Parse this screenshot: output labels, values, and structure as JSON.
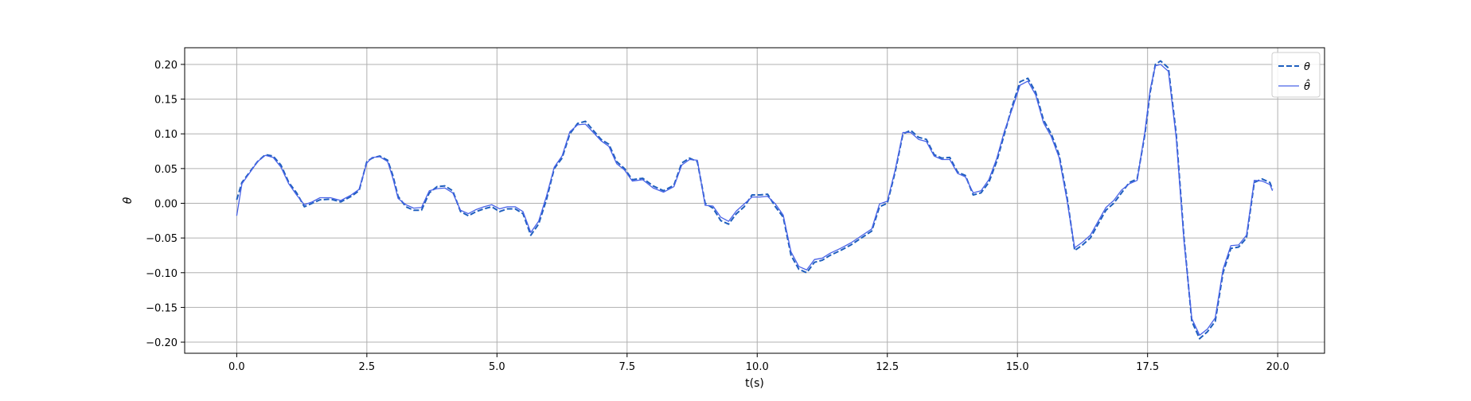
{
  "chart_data": {
    "type": "line",
    "title": "",
    "xlabel": "t(s)",
    "ylabel": "θ",
    "xlim": [
      -1.0,
      20.9
    ],
    "ylim": [
      -0.216,
      0.224
    ],
    "x_ticks": [
      0.0,
      2.5,
      5.0,
      7.5,
      10.0,
      12.5,
      15.0,
      17.5,
      20.0
    ],
    "x_tick_labels": [
      "0.0",
      "2.5",
      "5.0",
      "7.5",
      "10.0",
      "12.5",
      "15.0",
      "17.5",
      "20.0"
    ],
    "y_ticks": [
      -0.2,
      -0.15,
      -0.1,
      -0.05,
      0.0,
      0.05,
      0.1,
      0.15,
      0.2
    ],
    "y_tick_labels": [
      "−0.20",
      "−0.15",
      "−0.10",
      "−0.05",
      "0.00",
      "0.05",
      "0.10",
      "0.15",
      "0.20"
    ],
    "grid": true,
    "legend_position": "top-right",
    "series": [
      {
        "name": "θ",
        "style": "dashed",
        "color": "#1f5fbf",
        "x": [
          0.0,
          0.1,
          0.25,
          0.4,
          0.55,
          0.7,
          0.85,
          1.0,
          1.15,
          1.3,
          1.45,
          1.6,
          1.8,
          2.0,
          2.2,
          2.35,
          2.5,
          2.6,
          2.75,
          2.9,
          3.0,
          3.1,
          3.25,
          3.4,
          3.55,
          3.7,
          3.85,
          4.0,
          4.15,
          4.3,
          4.45,
          4.6,
          4.75,
          4.9,
          5.05,
          5.2,
          5.35,
          5.5,
          5.65,
          5.8,
          5.95,
          6.1,
          6.25,
          6.4,
          6.55,
          6.7,
          6.85,
          7.0,
          7.15,
          7.3,
          7.45,
          7.6,
          7.8,
          8.0,
          8.2,
          8.4,
          8.55,
          8.7,
          8.85,
          9.0,
          9.15,
          9.3,
          9.45,
          9.6,
          9.75,
          9.9,
          10.05,
          10.2,
          10.35,
          10.5,
          10.65,
          10.8,
          10.95,
          11.1,
          11.25,
          11.4,
          11.6,
          11.8,
          12.0,
          12.2,
          12.35,
          12.5,
          12.65,
          12.8,
          12.95,
          13.1,
          13.25,
          13.4,
          13.55,
          13.7,
          13.85,
          14.0,
          14.15,
          14.3,
          14.45,
          14.6,
          14.75,
          14.9,
          15.05,
          15.2,
          15.35,
          15.5,
          15.65,
          15.8,
          15.95,
          16.1,
          16.25,
          16.4,
          16.55,
          16.7,
          16.85,
          17.0,
          17.15,
          17.3,
          17.45,
          17.55,
          17.65,
          17.75,
          17.9,
          18.05,
          18.2,
          18.35,
          18.5,
          18.65,
          18.8,
          18.95,
          19.1,
          19.25,
          19.4,
          19.55,
          19.7,
          19.85,
          19.9
        ],
        "y": [
          0.005,
          0.03,
          0.045,
          0.06,
          0.07,
          0.068,
          0.055,
          0.03,
          0.015,
          -0.005,
          0.0,
          0.005,
          0.006,
          0.002,
          0.01,
          0.018,
          0.06,
          0.065,
          0.068,
          0.062,
          0.04,
          0.01,
          -0.005,
          -0.01,
          -0.01,
          0.015,
          0.024,
          0.025,
          0.018,
          -0.012,
          -0.018,
          -0.012,
          -0.008,
          -0.005,
          -0.012,
          -0.008,
          -0.008,
          -0.015,
          -0.046,
          -0.03,
          0.005,
          0.05,
          0.065,
          0.1,
          0.115,
          0.118,
          0.105,
          0.092,
          0.085,
          0.06,
          0.05,
          0.034,
          0.036,
          0.025,
          0.018,
          0.026,
          0.058,
          0.065,
          0.06,
          0.0,
          -0.007,
          -0.025,
          -0.03,
          -0.015,
          -0.005,
          0.012,
          0.012,
          0.013,
          -0.005,
          -0.02,
          -0.075,
          -0.095,
          -0.1,
          -0.085,
          -0.082,
          -0.075,
          -0.068,
          -0.06,
          -0.05,
          -0.04,
          -0.005,
          0.0,
          0.045,
          0.1,
          0.105,
          0.095,
          0.092,
          0.07,
          0.065,
          0.066,
          0.045,
          0.04,
          0.012,
          0.015,
          0.03,
          0.06,
          0.1,
          0.14,
          0.175,
          0.18,
          0.16,
          0.12,
          0.1,
          0.07,
          0.01,
          -0.068,
          -0.06,
          -0.05,
          -0.03,
          -0.01,
          0.0,
          0.015,
          0.03,
          0.035,
          0.1,
          0.16,
          0.2,
          0.205,
          0.195,
          0.1,
          -0.05,
          -0.17,
          -0.195,
          -0.185,
          -0.17,
          -0.1,
          -0.065,
          -0.063,
          -0.05,
          0.03,
          0.035,
          0.03,
          0.02
        ]
      },
      {
        "name": "θ̂",
        "style": "solid",
        "color": "#4a63e8",
        "x": [
          0.0,
          0.1,
          0.25,
          0.4,
          0.55,
          0.7,
          0.85,
          1.0,
          1.15,
          1.3,
          1.45,
          1.6,
          1.8,
          2.0,
          2.2,
          2.35,
          2.5,
          2.6,
          2.75,
          2.9,
          3.0,
          3.1,
          3.25,
          3.4,
          3.55,
          3.7,
          3.85,
          4.0,
          4.15,
          4.3,
          4.45,
          4.6,
          4.75,
          4.9,
          5.05,
          5.2,
          5.35,
          5.5,
          5.65,
          5.8,
          5.95,
          6.1,
          6.25,
          6.4,
          6.55,
          6.7,
          6.85,
          7.0,
          7.15,
          7.3,
          7.45,
          7.6,
          7.8,
          8.0,
          8.2,
          8.4,
          8.55,
          8.7,
          8.85,
          9.0,
          9.15,
          9.3,
          9.45,
          9.6,
          9.75,
          9.9,
          10.05,
          10.2,
          10.35,
          10.5,
          10.65,
          10.8,
          10.95,
          11.1,
          11.25,
          11.4,
          11.6,
          11.8,
          12.0,
          12.2,
          12.35,
          12.5,
          12.65,
          12.8,
          12.95,
          13.1,
          13.25,
          13.4,
          13.55,
          13.7,
          13.85,
          14.0,
          14.15,
          14.3,
          14.45,
          14.6,
          14.75,
          14.9,
          15.05,
          15.2,
          15.35,
          15.5,
          15.65,
          15.8,
          15.95,
          16.1,
          16.25,
          16.4,
          16.55,
          16.7,
          16.85,
          17.0,
          17.15,
          17.3,
          17.45,
          17.55,
          17.65,
          17.75,
          17.9,
          18.05,
          18.2,
          18.35,
          18.5,
          18.65,
          18.8,
          18.95,
          19.1,
          19.25,
          19.4,
          19.55,
          19.7,
          19.85,
          19.9
        ],
        "y": [
          -0.018,
          0.028,
          0.044,
          0.06,
          0.069,
          0.066,
          0.052,
          0.028,
          0.012,
          -0.002,
          0.002,
          0.008,
          0.008,
          0.004,
          0.012,
          0.02,
          0.058,
          0.066,
          0.067,
          0.06,
          0.036,
          0.007,
          -0.002,
          -0.007,
          -0.006,
          0.018,
          0.021,
          0.022,
          0.015,
          -0.01,
          -0.015,
          -0.009,
          -0.005,
          -0.002,
          -0.008,
          -0.005,
          -0.005,
          -0.012,
          -0.042,
          -0.026,
          0.01,
          0.052,
          0.068,
          0.103,
          0.113,
          0.114,
          0.102,
          0.09,
          0.082,
          0.057,
          0.048,
          0.032,
          0.034,
          0.022,
          0.016,
          0.024,
          0.055,
          0.063,
          0.062,
          -0.003,
          -0.004,
          -0.02,
          -0.026,
          -0.011,
          -0.001,
          0.009,
          0.009,
          0.01,
          -0.001,
          -0.017,
          -0.07,
          -0.091,
          -0.096,
          -0.081,
          -0.079,
          -0.072,
          -0.065,
          -0.057,
          -0.047,
          -0.037,
          -0.001,
          0.003,
          0.048,
          0.102,
          0.102,
          0.092,
          0.089,
          0.068,
          0.063,
          0.063,
          0.043,
          0.038,
          0.015,
          0.018,
          0.034,
          0.064,
          0.104,
          0.136,
          0.17,
          0.176,
          0.156,
          0.116,
          0.096,
          0.066,
          0.005,
          -0.064,
          -0.056,
          -0.046,
          -0.026,
          -0.006,
          0.004,
          0.019,
          0.028,
          0.033,
          0.104,
          0.164,
          0.198,
          0.2,
          0.19,
          0.094,
          -0.055,
          -0.166,
          -0.19,
          -0.181,
          -0.165,
          -0.095,
          -0.061,
          -0.06,
          -0.046,
          0.033,
          0.032,
          0.027,
          0.018
        ]
      }
    ]
  }
}
